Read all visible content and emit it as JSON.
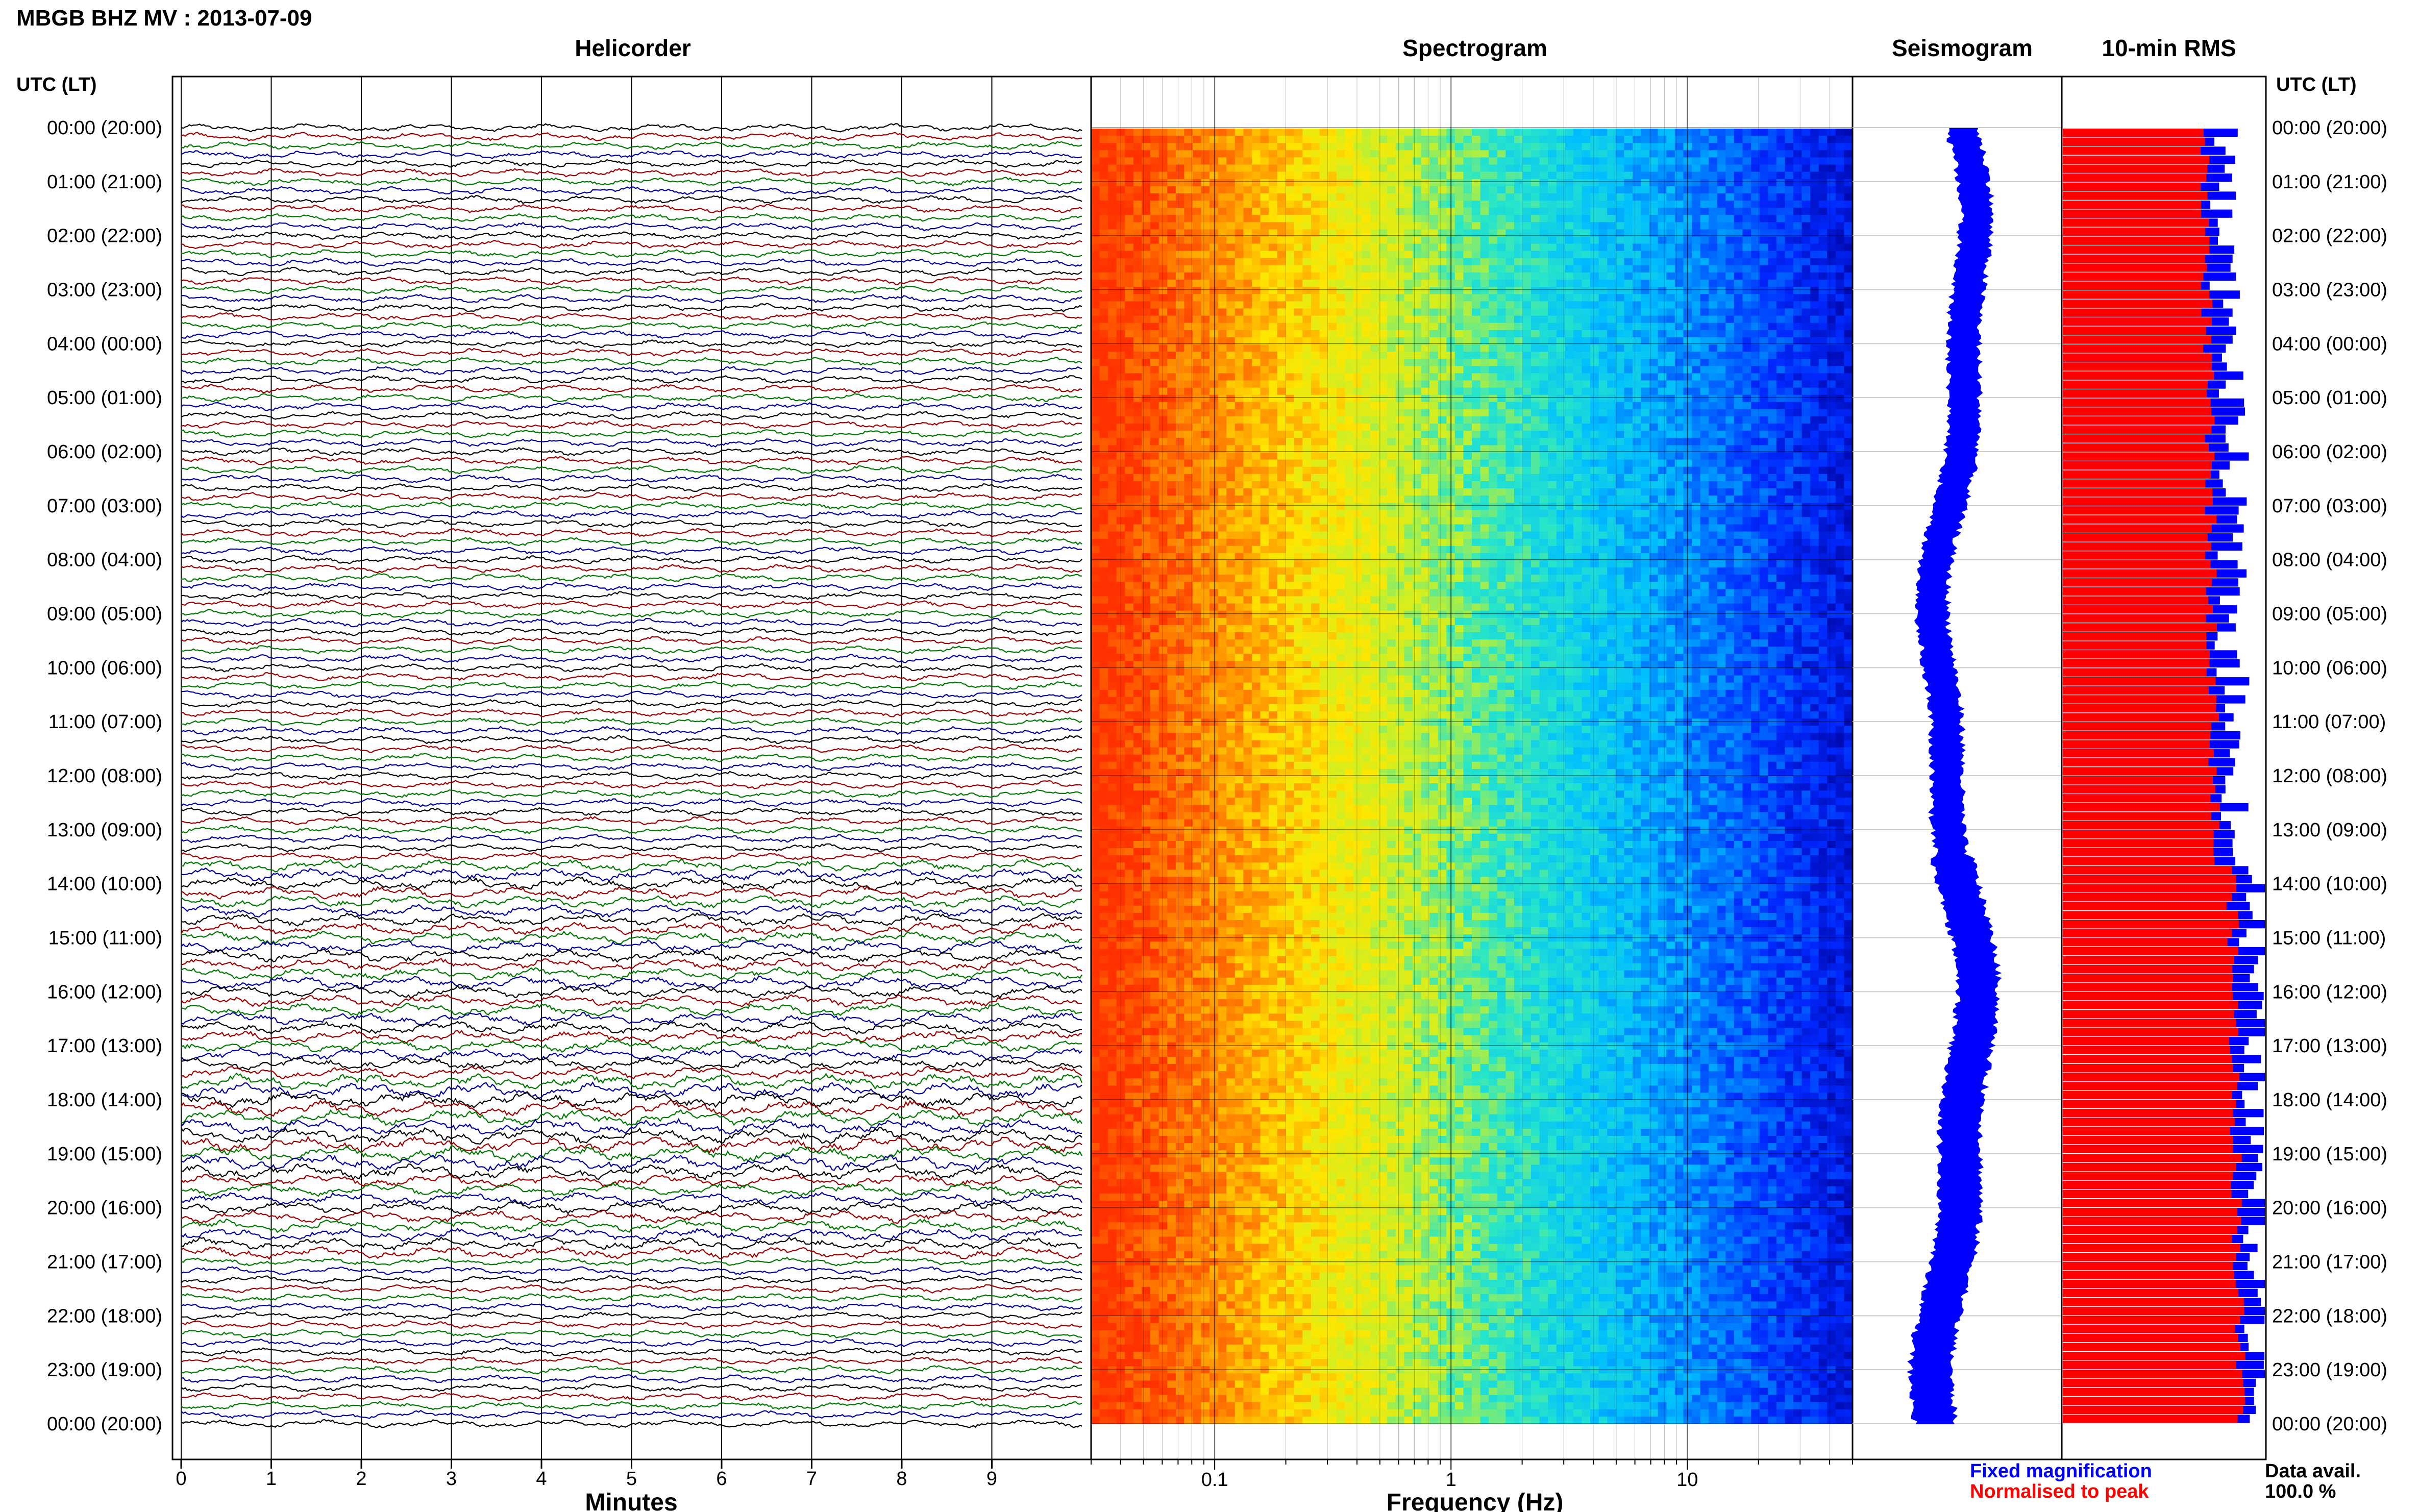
{
  "header": {
    "title": "MBGB BHZ MV : 2013-07-09",
    "utc_label_left": "UTC (LT)",
    "utc_label_right": "UTC (LT)"
  },
  "panels": {
    "helicorder": "Helicorder",
    "spectrogram": "Spectrogram",
    "seismogram": "Seismogram",
    "rms": "10-min RMS"
  },
  "time_labels": [
    "00:00 (20:00)",
    "01:00 (21:00)",
    "02:00 (22:00)",
    "03:00 (23:00)",
    "04:00 (00:00)",
    "05:00 (01:00)",
    "06:00 (02:00)",
    "07:00 (03:00)",
    "08:00 (04:00)",
    "09:00 (05:00)",
    "10:00 (06:00)",
    "11:00 (07:00)",
    "12:00 (08:00)",
    "13:00 (09:00)",
    "14:00 (10:00)",
    "15:00 (11:00)",
    "16:00 (12:00)",
    "17:00 (13:00)",
    "18:00 (14:00)",
    "19:00 (15:00)",
    "20:00 (16:00)",
    "21:00 (17:00)",
    "22:00 (18:00)",
    "23:00 (19:00)",
    "00:00 (20:00)"
  ],
  "legend": {
    "fixed": "Fixed magnification",
    "normalised": "Normalised to peak",
    "fixed_color": "#0000ff",
    "normalised_color": "#ff0000",
    "data_avail_label": "Data avail.",
    "data_avail_value": "100.0 %"
  },
  "chart_data": [
    {
      "type": "line",
      "panel": "helicorder",
      "xlabel": "Minutes",
      "x_ticks": [
        "0",
        "1",
        "2",
        "3",
        "4",
        "5",
        "6",
        "7",
        "8",
        "9"
      ],
      "xlim": [
        0,
        10
      ],
      "ylim_hours": [
        0,
        24
      ],
      "traces_per_hour": 6,
      "trace_colors": [
        "#000000",
        "#990000",
        "#007700",
        "#000099"
      ]
    },
    {
      "type": "heatmap",
      "panel": "spectrogram",
      "xlabel": "Frequency (Hz)",
      "x_scale": "log",
      "xlim": [
        0.03,
        50
      ],
      "x_ticks": [
        "0.1",
        "1",
        "10"
      ]
    },
    {
      "type": "line",
      "panel": "seismogram",
      "color": "#0000ff",
      "ylim_hours": [
        0,
        24
      ]
    },
    {
      "type": "bar",
      "panel": "rms",
      "orientation": "horizontal",
      "bins_per_hour": 6,
      "series": [
        {
          "name": "Fixed magnification",
          "color": "#0000ff"
        },
        {
          "name": "Normalised to peak",
          "color": "#ff0000"
        }
      ]
    }
  ]
}
